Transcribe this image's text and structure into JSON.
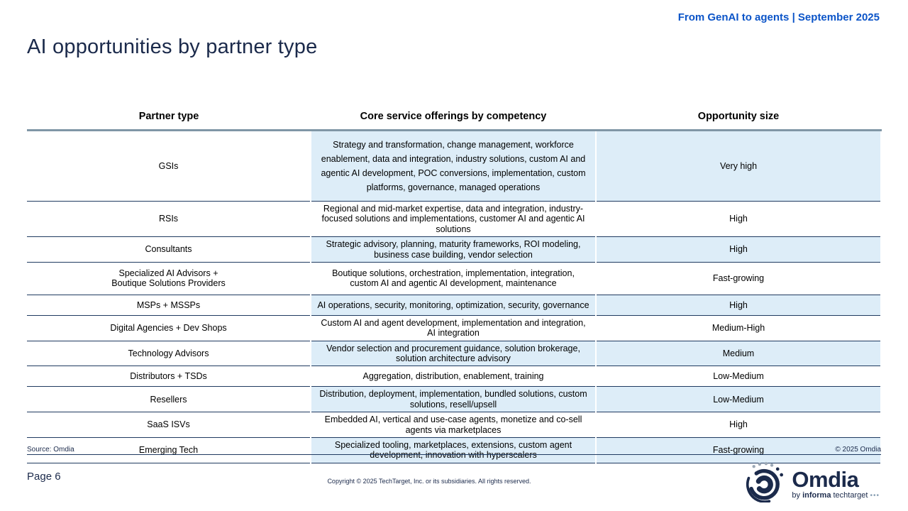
{
  "report_header": {
    "label": "From GenAI to agents | September 2025"
  },
  "page": {
    "title": "AI opportunities by partner type",
    "page_number": "Page 6"
  },
  "table": {
    "columns": [
      "Partner type",
      "Core service offerings by competency",
      "Opportunity size"
    ],
    "rows": [
      {
        "partner": "GSIs",
        "services": "Strategy and transformation, change management, workforce enablement, data and integration, industry solutions, custom AI and agentic AI development, POC conversions, implementation, custom platforms, governance, managed operations",
        "opportunity": "Very high"
      },
      {
        "partner": "RSIs",
        "services": "Regional and mid-market expertise, data and integration, industry-focused solutions and implementations, customer AI and agentic AI solutions",
        "opportunity": "High"
      },
      {
        "partner": "Consultants",
        "services": "Strategic advisory, planning, maturity frameworks, ROI modeling, business case building, vendor selection",
        "opportunity": "High"
      },
      {
        "partner": "Specialized AI Advisors +\nBoutique Solutions Providers",
        "services": "Boutique solutions, orchestration, implementation, integration, custom AI and agentic AI development, maintenance",
        "opportunity": "Fast-growing"
      },
      {
        "partner": "MSPs + MSSPs",
        "services": "AI operations, security, monitoring, optimization, security, governance",
        "opportunity": "High"
      },
      {
        "partner": "Digital Agencies + Dev Shops",
        "services": "Custom AI and agent development, implementation and integration, AI integration",
        "opportunity": "Medium-High"
      },
      {
        "partner": "Technology Advisors",
        "services": "Vendor selection and procurement guidance, solution brokerage, solution architecture advisory",
        "opportunity": "Medium"
      },
      {
        "partner": "Distributors + TSDs",
        "services": "Aggregation, distribution, enablement, training",
        "opportunity": "Low-Medium"
      },
      {
        "partner": "Resellers",
        "services": "Distribution, deployment, implementation, bundled solutions, custom solutions, resell/upsell",
        "opportunity": "Low-Medium"
      },
      {
        "partner": "SaaS ISVs",
        "services": "Embedded AI, vertical and use-case agents, monetize and co-sell agents via marketplaces",
        "opportunity": "High"
      },
      {
        "partner": "Emerging Tech",
        "services": "Specialized tooling, marketplaces, extensions, custom agent development, innovation with hyperscalers",
        "opportunity": "Fast-growing"
      }
    ]
  },
  "footer": {
    "source": "Source: Omdia",
    "copyright_right": "© 2025 Omdia",
    "copyright_center": "Copyright © 2025 TechTarget, Inc. or its subsidiaries. All rights reserved."
  },
  "logo": {
    "brand": "Omdia",
    "tagline_prefix": "by ",
    "tagline_bold": "informa",
    "tagline_rest": " techtarget ",
    "tagline_dots": "•••"
  },
  "colors": {
    "accent_blue": "#0b54c8",
    "navy": "#1b2a4b",
    "cell_blue": "#ddedf8",
    "header_rule": "#8096a6",
    "row_line": "#1f3a60"
  }
}
